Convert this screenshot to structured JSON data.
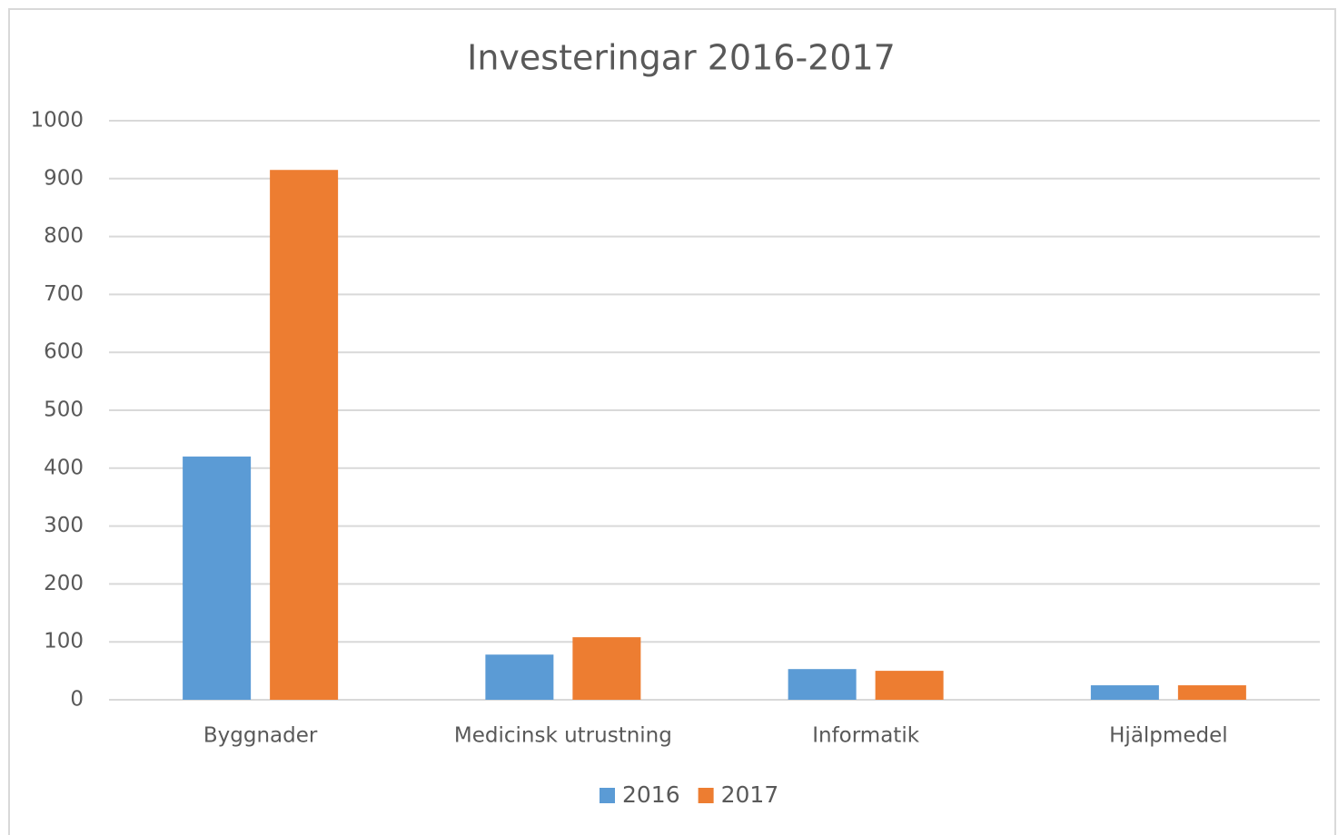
{
  "chart_data": {
    "type": "bar",
    "title": "Investeringar 2016-2017",
    "categories": [
      "Byggnader",
      "Medicinsk utrustning",
      "Informatik",
      "Hjälpmedel"
    ],
    "series": [
      {
        "name": "2016",
        "color": "#5b9bd5",
        "values": [
          420,
          78,
          53,
          25
        ]
      },
      {
        "name": "2017",
        "color": "#ed7d31",
        "values": [
          915,
          108,
          50,
          25
        ]
      }
    ],
    "ylim": [
      0,
      1000
    ],
    "yticks": [
      0,
      100,
      200,
      300,
      400,
      500,
      600,
      700,
      800,
      900,
      1000
    ],
    "grid": true,
    "legend": "bottom"
  }
}
